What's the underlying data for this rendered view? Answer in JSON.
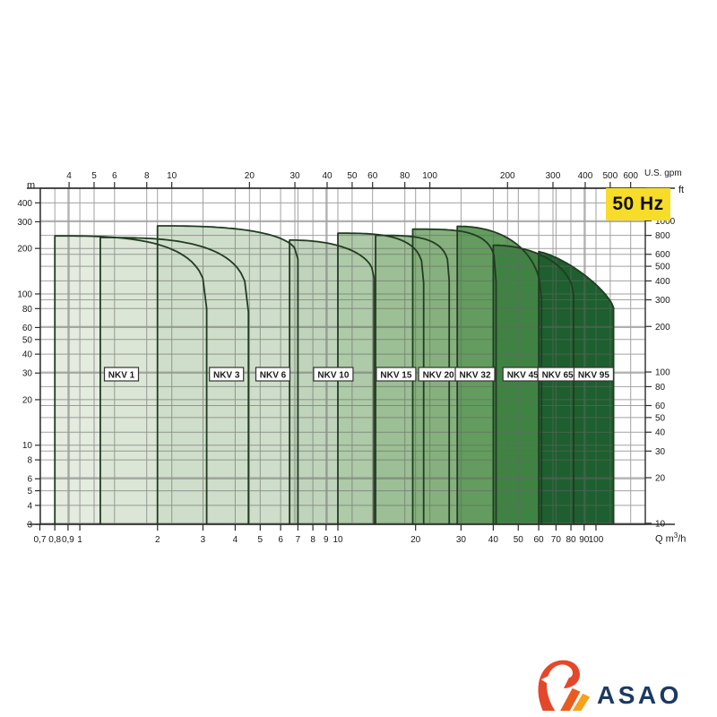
{
  "frequency_badge": {
    "label": "50 Hz",
    "bg": "#F7DC2A",
    "fg": "#111111"
  },
  "axis_units": {
    "head_m": "m",
    "head_ft": "ft",
    "flow_gpm": "U.S. gpm",
    "flow_prefix": "Q m",
    "flow_sup": "3",
    "flow_suffix": "/h"
  },
  "chart_data": {
    "type": "area",
    "description": "Pump performance range chart: head vs flow, log-log scales, 50 Hz",
    "x_axis": {
      "unit": "m3/h",
      "range": [
        0.7,
        155
      ],
      "tick_labels": [
        "0,7",
        "0,8",
        "0,9",
        "1",
        "2",
        "3",
        "4",
        "5",
        "6",
        "7",
        "8",
        "9",
        "10",
        "20",
        "30",
        "40",
        "50",
        "60",
        "70",
        "80",
        "90",
        "100"
      ],
      "tick_values": [
        0.7,
        0.8,
        0.9,
        1,
        2,
        3,
        4,
        5,
        6,
        7,
        8,
        9,
        10,
        20,
        30,
        40,
        50,
        60,
        70,
        80,
        90,
        100
      ]
    },
    "x_axis_top": {
      "unit": "U.S. gpm",
      "ticks": [
        4,
        5,
        6,
        8,
        10,
        20,
        30,
        40,
        50,
        60,
        80,
        100,
        200,
        300,
        400,
        500,
        600
      ],
      "gpm_per_m3h": 4.40287
    },
    "y_axis": {
      "unit": "m",
      "range": [
        3,
        500
      ],
      "ticks": [
        3,
        4,
        5,
        6,
        8,
        10,
        20,
        30,
        40,
        50,
        60,
        80,
        100,
        200,
        300,
        400
      ]
    },
    "y_axis_right": {
      "unit": "ft",
      "ticks": [
        10,
        20,
        30,
        40,
        50,
        60,
        80,
        100,
        200,
        300,
        400,
        500,
        600,
        800,
        1000
      ],
      "ft_per_m": 3.28084
    },
    "series": [
      {
        "label": "NKV 1",
        "q_min": 0.8,
        "q_max": 3.1,
        "h_max": 242,
        "h_knee": 80,
        "shape": 3.0,
        "label_q": 1.45,
        "color": "#e4ebdf"
      },
      {
        "label": "NKV 3",
        "q_min": 1.2,
        "q_max": 4.5,
        "h_max": 236,
        "h_knee": 76,
        "shape": 3.0,
        "label_q": 3.7,
        "color": "#dce6d6"
      },
      {
        "label": "NKV 6",
        "q_min": 2.0,
        "q_max": 7.0,
        "h_max": 282,
        "h_knee": 170,
        "shape": 2.6,
        "label_q": 5.6,
        "color": "#cfdeca"
      },
      {
        "label": "NKV 10",
        "q_min": 6.5,
        "q_max": 13.8,
        "h_max": 227,
        "h_knee": 128,
        "shape": 2.2,
        "label_q": 9.6,
        "color": "#c0d4bb"
      },
      {
        "label": "NKV 15",
        "q_min": 10.0,
        "q_max": 21.5,
        "h_max": 252,
        "h_knee": 118,
        "shape": 3.2,
        "label_q": 16.8,
        "color": "#aecaa8"
      },
      {
        "label": "NKV 20",
        "q_min": 14.0,
        "q_max": 27.0,
        "h_max": 244,
        "h_knee": 122,
        "shape": 3.4,
        "label_q": 24.5,
        "color": "#9cbf95"
      },
      {
        "label": "NKV 32",
        "q_min": 19.5,
        "q_max": 41.0,
        "h_max": 268,
        "h_knee": 121,
        "shape": 3.6,
        "label_q": 34,
        "color": "#86b17e"
      },
      {
        "label": "NKV 45",
        "q_min": 29.0,
        "q_max": 61.5,
        "h_max": 280,
        "h_knee": 93,
        "shape": 2.2,
        "label_q": 52,
        "color": "#639c5e"
      },
      {
        "label": "NKV 65",
        "q_min": 40.0,
        "q_max": 82.0,
        "h_max": 210,
        "h_knee": 97,
        "shape": 2.0,
        "label_q": 71,
        "color": "#3f8343"
      },
      {
        "label": "NKV 95",
        "q_min": 60.0,
        "q_max": 117.0,
        "h_max": 190,
        "h_knee": 81,
        "shape": 1.35,
        "label_q": 98,
        "color": "#1d5f2e"
      }
    ],
    "outline_color": "#223c22",
    "grid_color": "#666666",
    "frame_color": "#2b2b2b",
    "model_label_box": {
      "bg": "#ffffff",
      "border": "#333333"
    }
  },
  "logo": {
    "text": "ASAO",
    "text_color": "#1c3a60",
    "icon_colors": [
      "#e5472a",
      "#ea5b20",
      "#f7a01c"
    ]
  }
}
